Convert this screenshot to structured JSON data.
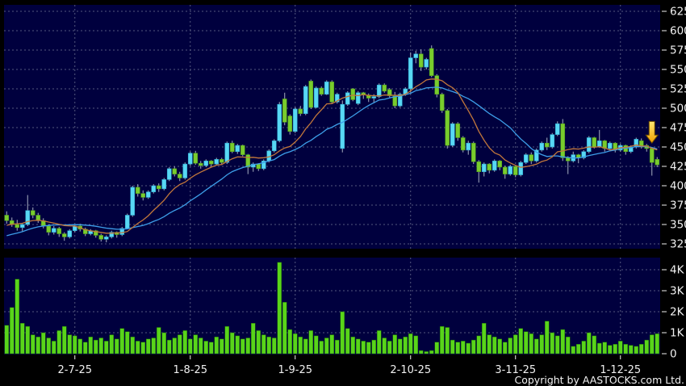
{
  "footer": {
    "copyright": "Copyright by AASTOCKS.com Ltd."
  },
  "colors": {
    "background": "#000000",
    "pane_background": "#00003E",
    "gridline": "#9aa0b4",
    "axis_text": "#f0f0f0",
    "wick": "#a8b0c0",
    "candle_up_fill": "#58D8F4",
    "candle_up_stroke": "#2FA6CC",
    "candle_down_fill": "#79CC2D",
    "candle_down_stroke": "#4E9A1C",
    "volume_bar_fill": "#59D41A",
    "volume_bar_stroke": "#1E6E08",
    "ma_short": "#C2773B",
    "ma_long": "#3D9EE8",
    "arrow_top": "#FFE873",
    "arrow_bottom": "#F0A000",
    "arrow_stroke": "#6b4a00"
  },
  "chart_data": {
    "type": "candlestick+volume",
    "title": "",
    "xlabel": "",
    "ylabel": "",
    "legend": "none",
    "grid": "dashed",
    "price_axis": {
      "min": 325,
      "max": 625,
      "tick_step": 25,
      "tick_labels": [
        "625",
        "600",
        "575",
        "550",
        "525",
        "500",
        "475",
        "450",
        "425",
        "400",
        "375",
        "350",
        "325"
      ]
    },
    "volume_axis": {
      "min": 0,
      "max_k": 4.6,
      "tick_labels": [
        "4K",
        "3K",
        "2K",
        "1K",
        "0"
      ],
      "tick_values_k": [
        4,
        3,
        2,
        1,
        0
      ]
    },
    "x_axis": {
      "labels": [
        {
          "text": "2-7-25",
          "index": 13
        },
        {
          "text": "1-8-25",
          "index": 35
        },
        {
          "text": "1-9-25",
          "index": 55
        },
        {
          "text": "2-10-25",
          "index": 77
        },
        {
          "text": "3-11-25",
          "index": 97
        },
        {
          "text": "1-12-25",
          "index": 117
        }
      ]
    },
    "overlays": {
      "ma_short_period": 10,
      "ma_long_period": 20,
      "ma_seed_closes": [
        310,
        312,
        314,
        316,
        318,
        320,
        322,
        325,
        328,
        331,
        334,
        337,
        340,
        343,
        346,
        349,
        352,
        355,
        356,
        357
      ]
    },
    "marker": {
      "type": "down-arrow",
      "index": 123,
      "price_top": 483,
      "price_tip": 455
    },
    "candles_format": [
      "open",
      "high",
      "low",
      "close",
      "volume_k"
    ],
    "candles": [
      [
        362,
        367,
        351,
        355,
        1.35
      ],
      [
        355,
        359,
        347,
        350,
        2.2
      ],
      [
        350,
        356,
        342,
        346,
        3.55
      ],
      [
        346,
        352,
        341,
        350,
        1.45
      ],
      [
        350,
        388,
        348,
        368,
        1.3
      ],
      [
        368,
        372,
        358,
        362,
        0.9
      ],
      [
        362,
        365,
        352,
        355,
        0.8
      ],
      [
        355,
        358,
        345,
        348,
        1.0
      ],
      [
        348,
        350,
        336,
        340,
        0.75
      ],
      [
        340,
        348,
        337,
        345,
        0.6
      ],
      [
        345,
        347,
        334,
        338,
        1.1
      ],
      [
        338,
        340,
        329,
        334,
        1.3
      ],
      [
        334,
        344,
        332,
        342,
        0.9
      ],
      [
        342,
        350,
        340,
        348,
        0.85
      ],
      [
        348,
        351,
        341,
        344,
        0.7
      ],
      [
        344,
        346,
        335,
        338,
        0.55
      ],
      [
        338,
        344,
        336,
        342,
        0.8
      ],
      [
        342,
        343,
        333,
        336,
        0.65
      ],
      [
        336,
        338,
        328,
        331,
        0.75
      ],
      [
        331,
        336,
        327,
        334,
        0.6
      ],
      [
        334,
        342,
        332,
        340,
        0.9
      ],
      [
        340,
        341,
        333,
        337,
        0.7
      ],
      [
        337,
        347,
        335,
        345,
        1.2
      ],
      [
        345,
        364,
        344,
        362,
        1.05
      ],
      [
        362,
        400,
        360,
        398,
        0.8
      ],
      [
        398,
        402,
        386,
        390,
        0.6
      ],
      [
        390,
        394,
        381,
        385,
        0.55
      ],
      [
        385,
        394,
        383,
        392,
        0.7
      ],
      [
        392,
        402,
        390,
        400,
        0.75
      ],
      [
        400,
        403,
        392,
        396,
        1.25
      ],
      [
        396,
        410,
        394,
        408,
        1.0
      ],
      [
        408,
        424,
        406,
        422,
        0.65
      ],
      [
        422,
        425,
        412,
        415,
        0.75
      ],
      [
        415,
        418,
        406,
        410,
        0.9
      ],
      [
        410,
        430,
        408,
        428,
        1.1
      ],
      [
        428,
        444,
        426,
        442,
        0.7
      ],
      [
        442,
        445,
        427,
        429,
        0.9
      ],
      [
        429,
        432,
        422,
        426,
        0.75
      ],
      [
        426,
        434,
        424,
        432,
        0.6
      ],
      [
        432,
        433,
        425,
        428,
        0.55
      ],
      [
        428,
        436,
        426,
        434,
        0.8
      ],
      [
        434,
        436,
        427,
        430,
        0.7
      ],
      [
        430,
        457,
        428,
        455,
        1.3
      ],
      [
        455,
        458,
        442,
        444,
        1.0
      ],
      [
        444,
        454,
        441,
        452,
        0.85
      ],
      [
        452,
        453,
        438,
        440,
        0.7
      ],
      [
        440,
        441,
        415,
        424,
        0.75
      ],
      [
        424,
        430,
        418,
        428,
        1.45
      ],
      [
        428,
        429,
        419,
        422,
        1.1
      ],
      [
        422,
        434,
        420,
        432,
        0.9
      ],
      [
        432,
        447,
        430,
        445,
        0.8
      ],
      [
        445,
        460,
        443,
        458,
        0.75
      ],
      [
        458,
        508,
        456,
        505,
        4.35
      ],
      [
        512,
        520,
        478,
        482,
        2.45
      ],
      [
        490,
        492,
        466,
        470,
        1.15
      ],
      [
        470,
        501,
        468,
        499,
        0.95
      ],
      [
        499,
        503,
        490,
        493,
        0.8
      ],
      [
        493,
        530,
        491,
        528,
        0.7
      ],
      [
        535,
        537,
        499,
        501,
        1.1
      ],
      [
        501,
        528,
        500,
        526,
        0.85
      ],
      [
        526,
        528,
        516,
        518,
        0.6
      ],
      [
        518,
        536,
        517,
        534,
        0.75
      ],
      [
        534,
        536,
        506,
        508,
        0.9
      ],
      [
        508,
        520,
        506,
        518,
        0.65
      ],
      [
        448,
        510,
        443,
        505,
        2.0
      ],
      [
        505,
        522,
        503,
        520,
        1.2
      ],
      [
        525,
        526,
        509,
        511,
        0.8
      ],
      [
        506,
        522,
        504,
        520,
        0.7
      ],
      [
        520,
        521,
        512,
        517,
        0.6
      ],
      [
        517,
        519,
        508,
        513,
        0.55
      ],
      [
        513,
        518,
        507,
        515,
        0.65
      ],
      [
        515,
        532,
        513,
        530,
        1.1
      ],
      [
        530,
        532,
        520,
        522,
        0.75
      ],
      [
        524,
        526,
        514,
        516,
        0.6
      ],
      [
        516,
        521,
        500,
        503,
        0.9
      ],
      [
        503,
        520,
        501,
        518,
        0.7
      ],
      [
        518,
        527,
        516,
        525,
        0.8
      ],
      [
        525,
        572,
        520,
        565,
        0.95
      ],
      [
        565,
        574,
        558,
        570,
        0.85
      ],
      [
        570,
        576,
        548,
        553,
        0.15
      ],
      [
        553,
        565,
        550,
        563,
        0.1
      ],
      [
        577,
        581,
        540,
        542,
        0.15
      ],
      [
        542,
        544,
        514,
        518,
        0.55
      ],
      [
        518,
        520,
        494,
        497,
        1.3
      ],
      [
        497,
        499,
        448,
        452,
        1.25
      ],
      [
        452,
        482,
        450,
        480,
        0.65
      ],
      [
        480,
        482,
        458,
        462,
        0.55
      ],
      [
        462,
        464,
        443,
        446,
        0.6
      ],
      [
        446,
        458,
        440,
        455,
        0.5
      ],
      [
        455,
        457,
        428,
        431,
        0.65
      ],
      [
        431,
        433,
        404,
        418,
        0.85
      ],
      [
        418,
        430,
        412,
        428,
        1.45
      ],
      [
        428,
        429,
        416,
        420,
        0.9
      ],
      [
        420,
        434,
        418,
        432,
        0.8
      ],
      [
        432,
        433,
        420,
        424,
        0.7
      ],
      [
        424,
        426,
        409,
        415,
        0.55
      ],
      [
        415,
        427,
        413,
        425,
        0.75
      ],
      [
        425,
        427,
        411,
        414,
        0.9
      ],
      [
        414,
        432,
        412,
        430,
        1.2
      ],
      [
        430,
        442,
        428,
        440,
        1.05
      ],
      [
        440,
        443,
        428,
        432,
        0.95
      ],
      [
        432,
        448,
        430,
        446,
        0.7
      ],
      [
        446,
        457,
        444,
        455,
        0.9
      ],
      [
        455,
        462,
        446,
        450,
        1.55
      ],
      [
        450,
        468,
        448,
        466,
        1.0
      ],
      [
        466,
        483,
        464,
        480,
        0.85
      ],
      [
        480,
        486,
        432,
        436,
        1.15
      ],
      [
        436,
        438,
        415,
        432,
        0.8
      ],
      [
        432,
        444,
        430,
        440,
        0.35
      ],
      [
        440,
        441,
        429,
        436,
        0.45
      ],
      [
        436,
        446,
        434,
        444,
        0.6
      ],
      [
        444,
        464,
        442,
        462,
        1.0
      ],
      [
        462,
        463,
        448,
        450,
        0.85
      ],
      [
        450,
        472,
        449,
        458,
        0.5
      ],
      [
        458,
        459,
        444,
        448,
        0.55
      ],
      [
        448,
        457,
        446,
        455,
        0.4
      ],
      [
        455,
        456,
        443,
        446,
        0.45
      ],
      [
        446,
        454,
        444,
        452,
        0.6
      ],
      [
        452,
        453,
        440,
        444,
        0.45
      ],
      [
        444,
        452,
        442,
        450,
        0.4
      ],
      [
        450,
        462,
        448,
        460,
        0.35
      ],
      [
        458,
        461,
        448,
        450,
        0.45
      ],
      [
        452,
        454,
        444,
        448,
        0.65
      ],
      [
        448,
        450,
        413,
        430,
        0.9
      ],
      [
        434,
        437,
        424,
        427,
        0.95
      ]
    ]
  }
}
